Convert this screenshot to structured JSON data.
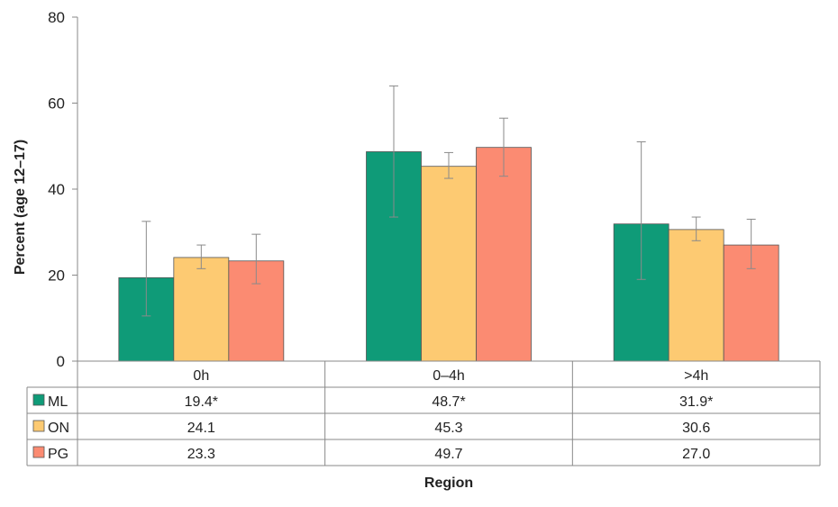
{
  "chart_data": {
    "type": "bar",
    "xlabel": "Region",
    "ylabel": "Percent (age 12–17)",
    "ylim": [
      0,
      80
    ],
    "yticks": [
      0,
      20,
      40,
      60,
      80
    ],
    "grid": false,
    "legend": "data table below plot",
    "categories": [
      "0h",
      "0–4h",
      ">4h"
    ],
    "series": [
      {
        "name": "ML",
        "color": "#0f9b78",
        "values": [
          19.4,
          48.7,
          31.9
        ],
        "labels": [
          "19.4*",
          "48.7*",
          "31.9*"
        ],
        "ci_low": [
          10.5,
          33.5,
          19.0
        ],
        "ci_high": [
          32.5,
          64.0,
          51.0
        ]
      },
      {
        "name": "ON",
        "color": "#fdca72",
        "values": [
          24.1,
          45.3,
          30.6
        ],
        "labels": [
          "24.1",
          "45.3",
          "30.6"
        ],
        "ci_low": [
          21.5,
          42.5,
          28.0
        ],
        "ci_high": [
          27.0,
          48.5,
          33.5
        ]
      },
      {
        "name": "PG",
        "color": "#fb8b72",
        "values": [
          23.3,
          49.7,
          27.0
        ],
        "labels": [
          "23.3",
          "49.7",
          "27.0"
        ],
        "ci_low": [
          18.0,
          43.0,
          21.5
        ],
        "ci_high": [
          29.5,
          56.5,
          33.0
        ]
      }
    ]
  }
}
